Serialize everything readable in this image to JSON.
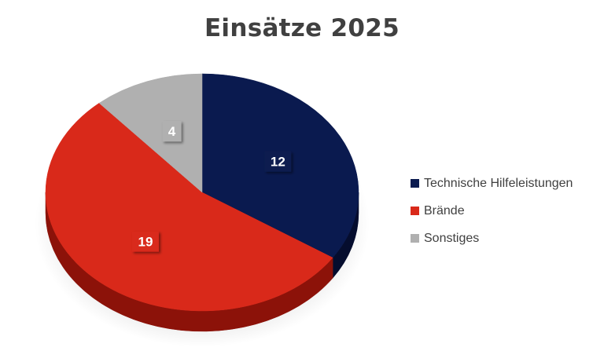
{
  "chart_data": {
    "type": "pie",
    "title": "Einsätze 2025",
    "categories": [
      "Technische Hilfeleistungen",
      "Brände",
      "Sonstiges"
    ],
    "values": [
      12,
      19,
      4
    ],
    "colors": [
      "#0a1a4f",
      "#d9291a",
      "#b0b0b0"
    ],
    "side_colors": [
      "#050d2e",
      "#8c1209",
      "#7a7a7a"
    ],
    "legend_position": "right",
    "data_labels": true,
    "style": "3d"
  }
}
